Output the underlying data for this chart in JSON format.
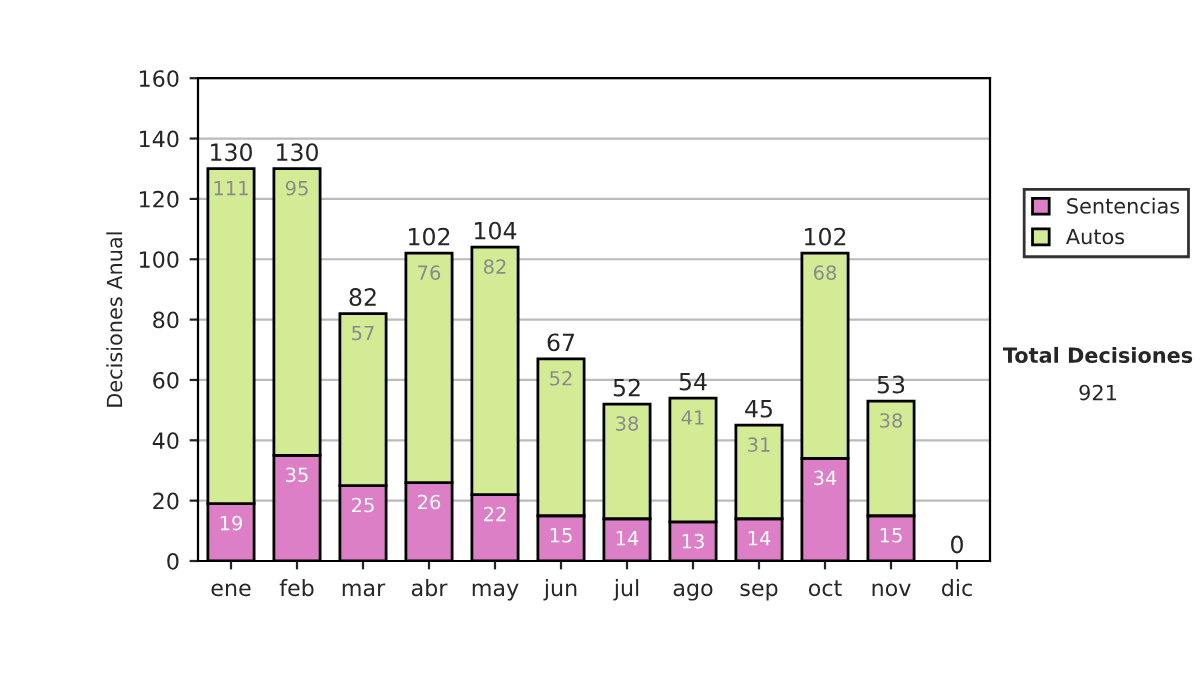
{
  "chart_data": {
    "type": "bar",
    "stacked": true,
    "ylabel": "Decisiones Anual",
    "categories": [
      "ene",
      "feb",
      "mar",
      "abr",
      "may",
      "jun",
      "jul",
      "ago",
      "sep",
      "oct",
      "nov",
      "dic"
    ],
    "series": [
      {
        "name": "Sentencias",
        "color": "#dd7fc6",
        "values": [
          19,
          35,
          25,
          26,
          22,
          15,
          14,
          13,
          14,
          34,
          15,
          0
        ],
        "value_labels": [
          "19",
          "35",
          "25",
          "26",
          "22",
          "15",
          "14",
          "13",
          "14",
          "34",
          "15",
          null
        ]
      },
      {
        "name": "Autos",
        "color": "#d4eb96",
        "values": [
          111,
          95,
          57,
          76,
          82,
          52,
          38,
          41,
          31,
          68,
          38,
          0
        ],
        "value_labels": [
          "111",
          "95",
          "57",
          "76",
          "82",
          "52",
          "38",
          "41",
          "31",
          "68",
          "38",
          null
        ]
      }
    ],
    "totals": [
      "130",
      "130",
      "82",
      "102",
      "104",
      "67",
      "52",
      "54",
      "45",
      "102",
      "53",
      "0"
    ],
    "ylim": [
      0,
      160
    ],
    "yticks": [
      0,
      20,
      40,
      60,
      80,
      100,
      120,
      140,
      160
    ],
    "grid": "y",
    "legend": "right",
    "annotations": [
      "Total Decisiones",
      "921"
    ]
  }
}
